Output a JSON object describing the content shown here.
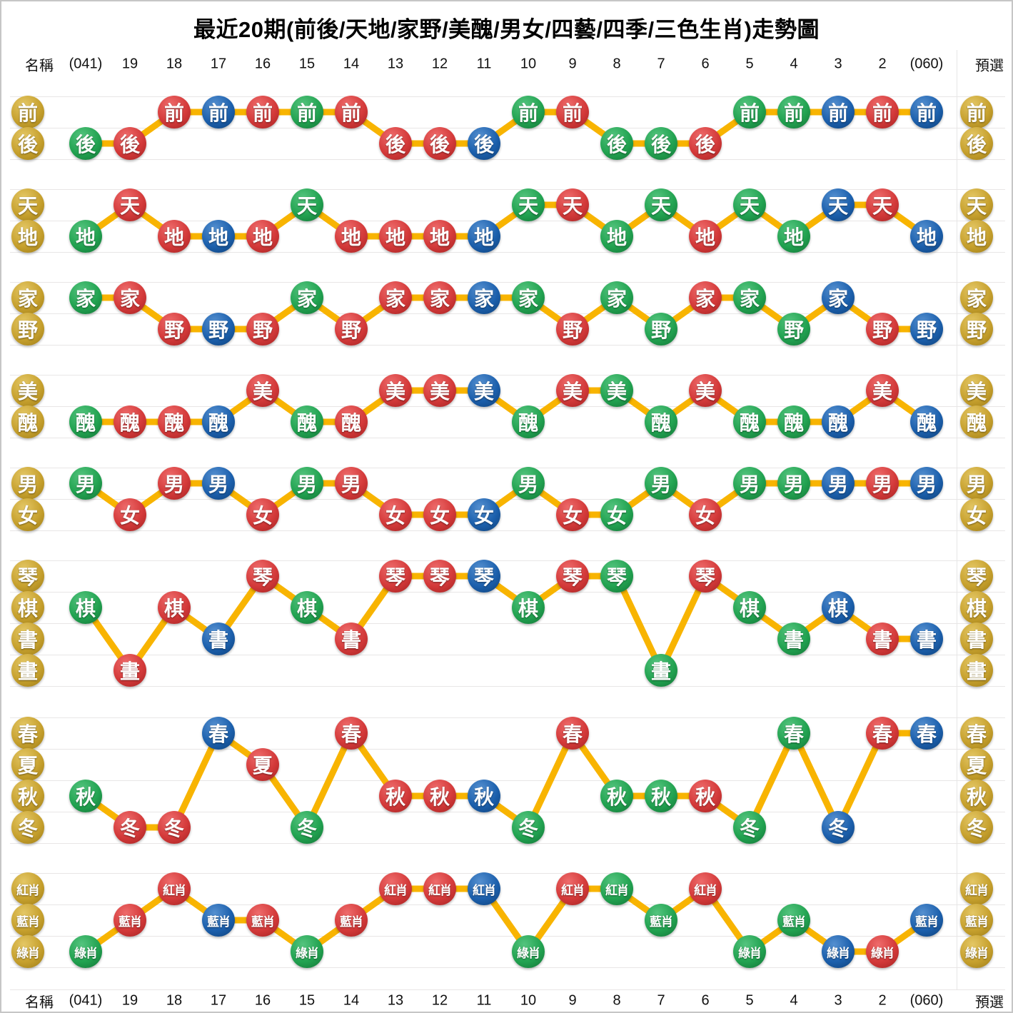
{
  "page": {
    "title": "最近20期(前後/天地/家野/美醜/男女/四藝/四季/三色生肖)走勢圖",
    "axis": {
      "name_label": "名稱",
      "preselect_label": "預選",
      "columns": [
        "(041)",
        "19",
        "18",
        "17",
        "16",
        "15",
        "14",
        "13",
        "12",
        "11",
        "10",
        "9",
        "8",
        "7",
        "6",
        "5",
        "4",
        "3",
        "2",
        "(060)"
      ]
    }
  },
  "colors": {
    "red": "#d43a3a",
    "green": "#22a351",
    "blue": "#1c60ad",
    "gold": "#c7a12e",
    "line": "#f8b401",
    "grid": "#e8e6e6"
  },
  "chart_data": {
    "type": "line",
    "subtype": "categorical-trend",
    "title": "最近20期(前後/天地/家野/美醜/男女/四藝/四季/三色生肖)走勢圖",
    "columns": [
      "(041)",
      "19",
      "18",
      "17",
      "16",
      "15",
      "14",
      "13",
      "12",
      "11",
      "10",
      "9",
      "8",
      "7",
      "6",
      "5",
      "4",
      "3",
      "2",
      "(060)"
    ],
    "point_format": [
      "value",
      "ball_color"
    ],
    "bands": [
      {
        "name": "前後",
        "rows": [
          "前",
          "後"
        ],
        "points": [
          [
            "後",
            "green"
          ],
          [
            "後",
            "red"
          ],
          [
            "前",
            "red"
          ],
          [
            "前",
            "blue"
          ],
          [
            "前",
            "red"
          ],
          [
            "前",
            "green"
          ],
          [
            "前",
            "red"
          ],
          [
            "後",
            "red"
          ],
          [
            "後",
            "red"
          ],
          [
            "後",
            "blue"
          ],
          [
            "前",
            "green"
          ],
          [
            "前",
            "red"
          ],
          [
            "後",
            "green"
          ],
          [
            "後",
            "green"
          ],
          [
            "後",
            "red"
          ],
          [
            "前",
            "green"
          ],
          [
            "前",
            "green"
          ],
          [
            "前",
            "blue"
          ],
          [
            "前",
            "red"
          ],
          [
            "前",
            "blue"
          ]
        ]
      },
      {
        "name": "天地",
        "rows": [
          "天",
          "地"
        ],
        "points": [
          [
            "地",
            "green"
          ],
          [
            "天",
            "red"
          ],
          [
            "地",
            "red"
          ],
          [
            "地",
            "blue"
          ],
          [
            "地",
            "red"
          ],
          [
            "天",
            "green"
          ],
          [
            "地",
            "red"
          ],
          [
            "地",
            "red"
          ],
          [
            "地",
            "red"
          ],
          [
            "地",
            "blue"
          ],
          [
            "天",
            "green"
          ],
          [
            "天",
            "red"
          ],
          [
            "地",
            "green"
          ],
          [
            "天",
            "green"
          ],
          [
            "地",
            "red"
          ],
          [
            "天",
            "green"
          ],
          [
            "地",
            "green"
          ],
          [
            "天",
            "blue"
          ],
          [
            "天",
            "red"
          ],
          [
            "地",
            "blue"
          ]
        ]
      },
      {
        "name": "家野",
        "rows": [
          "家",
          "野"
        ],
        "points": [
          [
            "家",
            "green"
          ],
          [
            "家",
            "red"
          ],
          [
            "野",
            "red"
          ],
          [
            "野",
            "blue"
          ],
          [
            "野",
            "red"
          ],
          [
            "家",
            "green"
          ],
          [
            "野",
            "red"
          ],
          [
            "家",
            "red"
          ],
          [
            "家",
            "red"
          ],
          [
            "家",
            "blue"
          ],
          [
            "家",
            "green"
          ],
          [
            "野",
            "red"
          ],
          [
            "家",
            "green"
          ],
          [
            "野",
            "green"
          ],
          [
            "家",
            "red"
          ],
          [
            "家",
            "green"
          ],
          [
            "野",
            "green"
          ],
          [
            "家",
            "blue"
          ],
          [
            "野",
            "red"
          ],
          [
            "野",
            "blue"
          ]
        ]
      },
      {
        "name": "美醜",
        "rows": [
          "美",
          "醜"
        ],
        "points": [
          [
            "醜",
            "green"
          ],
          [
            "醜",
            "red"
          ],
          [
            "醜",
            "red"
          ],
          [
            "醜",
            "blue"
          ],
          [
            "美",
            "red"
          ],
          [
            "醜",
            "green"
          ],
          [
            "醜",
            "red"
          ],
          [
            "美",
            "red"
          ],
          [
            "美",
            "red"
          ],
          [
            "美",
            "blue"
          ],
          [
            "醜",
            "green"
          ],
          [
            "美",
            "red"
          ],
          [
            "美",
            "green"
          ],
          [
            "醜",
            "green"
          ],
          [
            "美",
            "red"
          ],
          [
            "醜",
            "green"
          ],
          [
            "醜",
            "green"
          ],
          [
            "醜",
            "blue"
          ],
          [
            "美",
            "red"
          ],
          [
            "醜",
            "blue"
          ]
        ]
      },
      {
        "name": "男女",
        "rows": [
          "男",
          "女"
        ],
        "points": [
          [
            "男",
            "green"
          ],
          [
            "女",
            "red"
          ],
          [
            "男",
            "red"
          ],
          [
            "男",
            "blue"
          ],
          [
            "女",
            "red"
          ],
          [
            "男",
            "green"
          ],
          [
            "男",
            "red"
          ],
          [
            "女",
            "red"
          ],
          [
            "女",
            "red"
          ],
          [
            "女",
            "blue"
          ],
          [
            "男",
            "green"
          ],
          [
            "女",
            "red"
          ],
          [
            "女",
            "green"
          ],
          [
            "男",
            "green"
          ],
          [
            "女",
            "red"
          ],
          [
            "男",
            "green"
          ],
          [
            "男",
            "green"
          ],
          [
            "男",
            "blue"
          ],
          [
            "男",
            "red"
          ],
          [
            "男",
            "blue"
          ]
        ]
      },
      {
        "name": "四藝",
        "rows": [
          "琴",
          "棋",
          "書",
          "畫"
        ],
        "points": [
          [
            "棋",
            "green"
          ],
          [
            "畫",
            "red"
          ],
          [
            "棋",
            "red"
          ],
          [
            "書",
            "blue"
          ],
          [
            "琴",
            "red"
          ],
          [
            "棋",
            "green"
          ],
          [
            "書",
            "red"
          ],
          [
            "琴",
            "red"
          ],
          [
            "琴",
            "red"
          ],
          [
            "琴",
            "blue"
          ],
          [
            "棋",
            "green"
          ],
          [
            "琴",
            "red"
          ],
          [
            "琴",
            "green"
          ],
          [
            "畫",
            "green"
          ],
          [
            "琴",
            "red"
          ],
          [
            "棋",
            "green"
          ],
          [
            "書",
            "green"
          ],
          [
            "棋",
            "blue"
          ],
          [
            "書",
            "red"
          ],
          [
            "書",
            "blue"
          ]
        ]
      },
      {
        "name": "四季",
        "rows": [
          "春",
          "夏",
          "秋",
          "冬"
        ],
        "points": [
          [
            "秋",
            "green"
          ],
          [
            "冬",
            "red"
          ],
          [
            "冬",
            "red"
          ],
          [
            "春",
            "blue"
          ],
          [
            "夏",
            "red"
          ],
          [
            "冬",
            "green"
          ],
          [
            "春",
            "red"
          ],
          [
            "秋",
            "red"
          ],
          [
            "秋",
            "red"
          ],
          [
            "秋",
            "blue"
          ],
          [
            "冬",
            "green"
          ],
          [
            "春",
            "red"
          ],
          [
            "秋",
            "green"
          ],
          [
            "秋",
            "green"
          ],
          [
            "秋",
            "red"
          ],
          [
            "冬",
            "green"
          ],
          [
            "春",
            "green"
          ],
          [
            "冬",
            "blue"
          ],
          [
            "春",
            "red"
          ],
          [
            "春",
            "blue"
          ]
        ]
      },
      {
        "name": "三色生肖",
        "rows": [
          "紅肖",
          "藍肖",
          "綠肖"
        ],
        "points": [
          [
            "綠肖",
            "green"
          ],
          [
            "藍肖",
            "red"
          ],
          [
            "紅肖",
            "red"
          ],
          [
            "藍肖",
            "blue"
          ],
          [
            "藍肖",
            "red"
          ],
          [
            "綠肖",
            "green"
          ],
          [
            "藍肖",
            "red"
          ],
          [
            "紅肖",
            "red"
          ],
          [
            "紅肖",
            "red"
          ],
          [
            "紅肖",
            "blue"
          ],
          [
            "綠肖",
            "green"
          ],
          [
            "紅肖",
            "red"
          ],
          [
            "紅肖",
            "green"
          ],
          [
            "藍肖",
            "green"
          ],
          [
            "紅肖",
            "red"
          ],
          [
            "綠肖",
            "green"
          ],
          [
            "藍肖",
            "green"
          ],
          [
            "綠肖",
            "blue"
          ],
          [
            "綠肖",
            "red"
          ],
          [
            "藍肖",
            "blue"
          ]
        ]
      }
    ]
  }
}
